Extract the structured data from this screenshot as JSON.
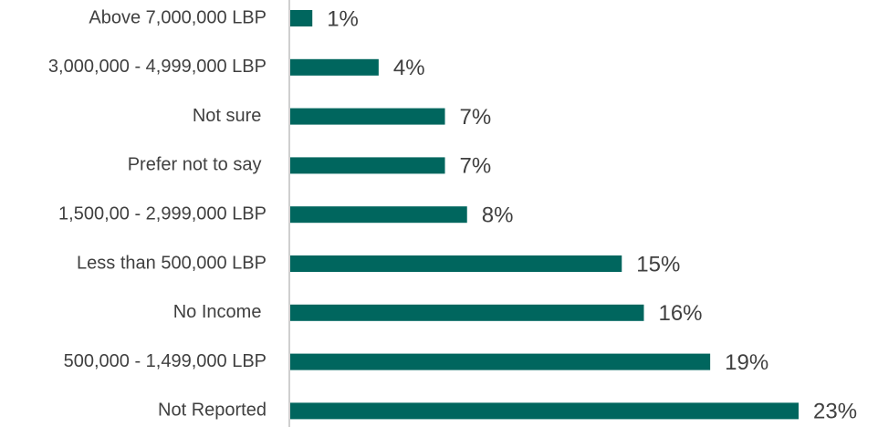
{
  "chart_data": {
    "type": "bar",
    "orientation": "horizontal",
    "categories": [
      "Above 7,000,000 LBP",
      "3,000,000 - 4,999,000 LBP",
      "Not sure ",
      "Prefer not to say ",
      "1,500,00 - 2,999,000 LBP",
      "Less than 500,000 LBP",
      "No Income ",
      "500,000 - 1,499,000 LBP",
      "Not Reported"
    ],
    "values": [
      1,
      4,
      7,
      7,
      8,
      15,
      16,
      19,
      23
    ],
    "value_labels": [
      "1%",
      "4%",
      "7%",
      "7%",
      "8%",
      "15%",
      "16%",
      "19%",
      "23%"
    ],
    "color": "#00665e"
  }
}
